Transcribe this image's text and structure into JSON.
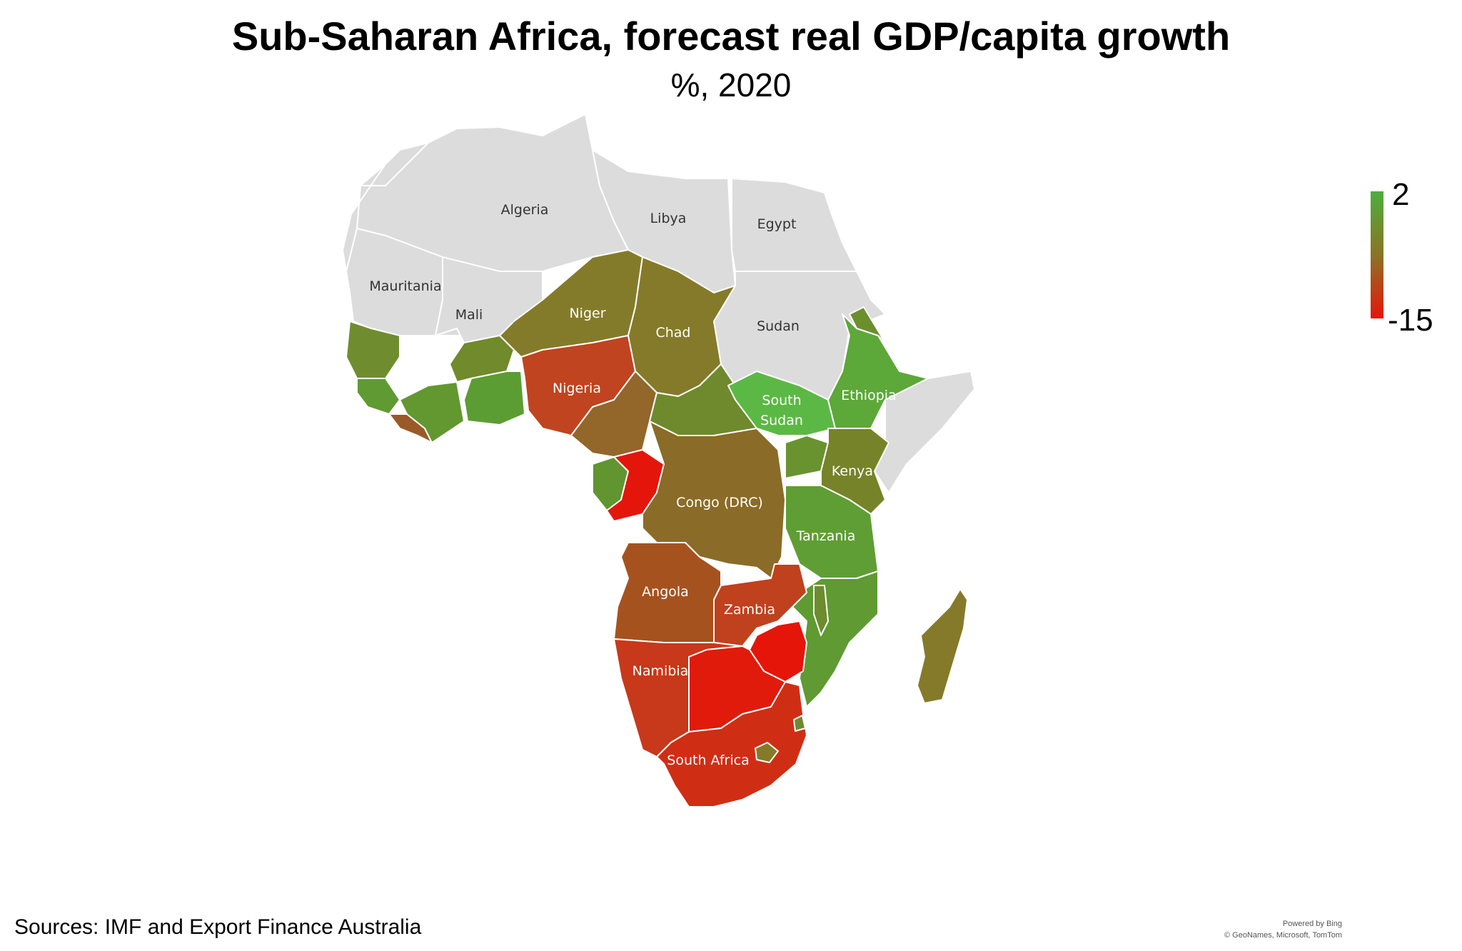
{
  "title": "Sub-Saharan Africa, forecast real GDP/capita growth",
  "subtitle": "%, 2020",
  "legend": {
    "max": "2",
    "min": "-15",
    "color_max": "#4caf3c",
    "color_mid": "#8a7426",
    "color_min": "#e8140a"
  },
  "labels": {
    "algeria": "Algeria",
    "libya": "Libya",
    "egypt": "Egypt",
    "mauritania": "Mauritania",
    "mali": "Mali",
    "niger": "Niger",
    "chad": "Chad",
    "sudan": "Sudan",
    "nigeria": "Nigeria",
    "south_sudan_1": "South",
    "south_sudan_2": "Sudan",
    "ethiopia": "Ethiopia",
    "kenya": "Kenya",
    "congo_drc": "Congo (DRC)",
    "tanzania": "Tanzania",
    "angola": "Angola",
    "zambia": "Zambia",
    "namibia": "Namibia",
    "south_africa": "South Africa"
  },
  "sources": "Sources: IMF and Export Finance Australia",
  "attribution": {
    "line1": "Powered by Bing",
    "line2": "© GeoNames, Microsoft, TomTom"
  }
}
